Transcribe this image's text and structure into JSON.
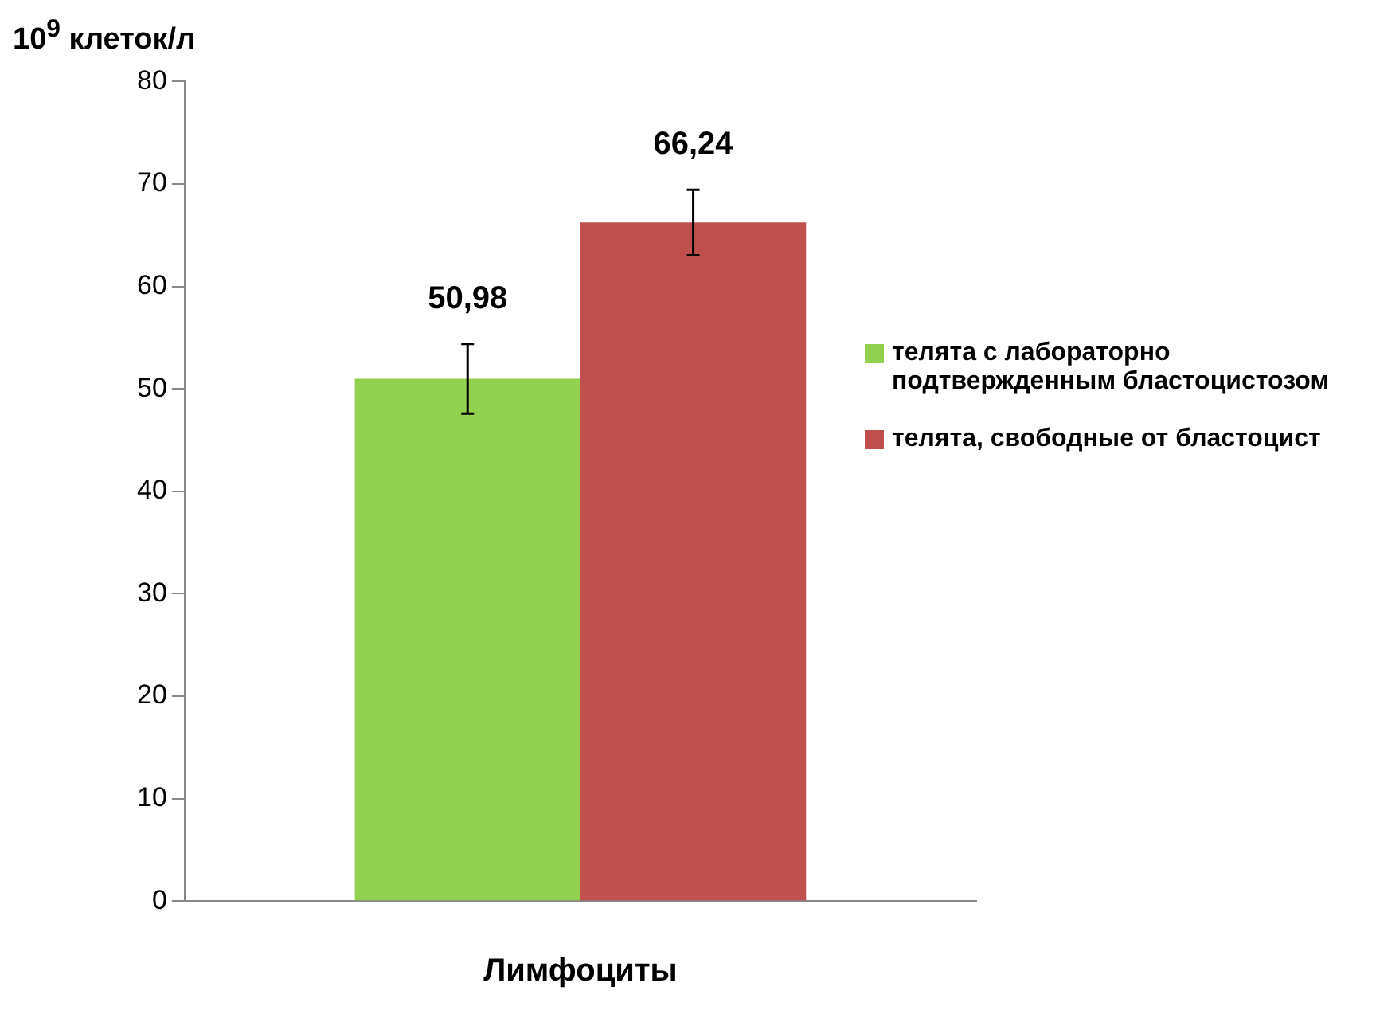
{
  "chart_data": {
    "type": "bar",
    "ylabel": "10$^{9}$ клеток/л",
    "xlabel": "Лимфоциты",
    "categories": [
      null
    ],
    "ylim": [
      0,
      80
    ],
    "yticks": [
      0,
      10,
      20,
      30,
      40,
      50,
      60,
      70,
      80
    ],
    "grid": false,
    "legend": "right",
    "series": [
      {
        "name": "телята с лабораторно подтвержденным бластоцистозом",
        "color": "#92d050",
        "values": [
          50.98
        ],
        "errors": [
          3.4
        ],
        "value_labels": [
          "50,98"
        ]
      },
      {
        "name": "телята, свободные от бластоцист",
        "color": "#c0504d",
        "values": [
          66.24
        ],
        "errors": [
          3.2
        ],
        "value_labels": [
          "66,24"
        ]
      }
    ]
  }
}
